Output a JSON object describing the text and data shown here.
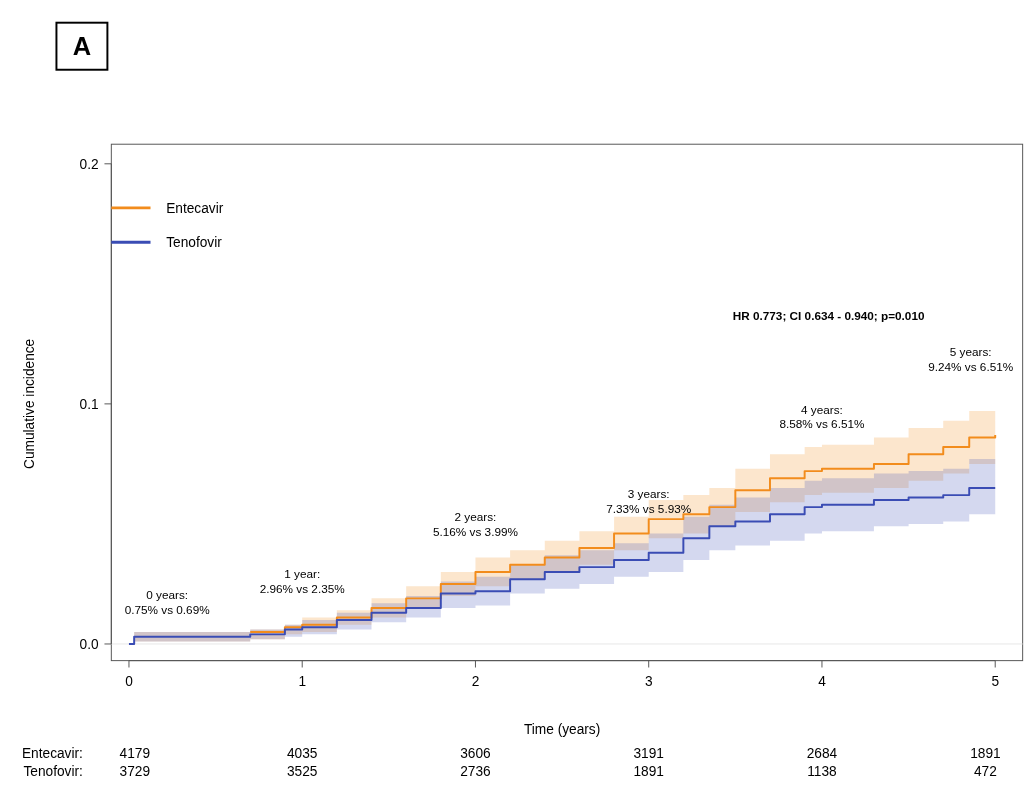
{
  "chart_data": {
    "type": "step",
    "title": "A",
    "xlabel": "Time (years)",
    "ylabel": "Cumulative incidence",
    "xlim": [
      0,
      5
    ],
    "ylim": [
      0,
      0.2
    ],
    "xticks": [
      0,
      1,
      2,
      3,
      4,
      5
    ],
    "yticks": [
      {
        "value": 0,
        "label": "0.0"
      },
      0.1,
      0.2
    ],
    "legend": "top left",
    "line_style": "solid",
    "series": [
      {
        "name": "Entecavir",
        "color": "#f28c1c",
        "x": [
          0,
          0.03,
          0.3,
          0.7,
          0.9,
          1.0,
          1.2,
          1.4,
          1.6,
          1.8,
          2.0,
          2.2,
          2.4,
          2.6,
          2.8,
          3.0,
          3.2,
          3.35,
          3.5,
          3.7,
          3.9,
          4.0,
          4.3,
          4.5,
          4.7,
          4.85,
          5.0
        ],
        "values": [
          null,
          null,
          null,
          0.005,
          0.007,
          0.008,
          0.011,
          0.015,
          0.019,
          0.025,
          0.03,
          0.033,
          0.036,
          0.04,
          0.046,
          0.052,
          0.054,
          0.057,
          0.064,
          0.069,
          0.072,
          0.073,
          0.075,
          0.079,
          0.082,
          0.086,
          0.087
        ],
        "lower": [
          0,
          0.001,
          0.001,
          0.002,
          0.004,
          0.005,
          0.008,
          0.011,
          0.015,
          0.02,
          0.024,
          0.027,
          0.03,
          0.033,
          0.039,
          0.044,
          0.046,
          0.049,
          0.055,
          0.059,
          0.062,
          0.063,
          0.065,
          0.068,
          0.071,
          0.075,
          0.077
        ],
        "upper": [
          0,
          0.005,
          0.005,
          0.006,
          0.008,
          0.011,
          0.014,
          0.019,
          0.024,
          0.03,
          0.036,
          0.039,
          0.043,
          0.047,
          0.053,
          0.06,
          0.062,
          0.065,
          0.073,
          0.079,
          0.082,
          0.083,
          0.086,
          0.09,
          0.093,
          0.097,
          0.098
        ]
      },
      {
        "name": "Tenofovir",
        "color": "#3a4cb4",
        "x": [
          0,
          0.03,
          0.3,
          0.7,
          0.9,
          1.0,
          1.2,
          1.4,
          1.6,
          1.8,
          2.0,
          2.2,
          2.4,
          2.6,
          2.8,
          3.0,
          3.2,
          3.35,
          3.5,
          3.7,
          3.9,
          4.0,
          4.3,
          4.5,
          4.7,
          4.85,
          5.0
        ],
        "values": [
          0,
          0.003,
          0.003,
          0.004,
          0.006,
          0.007,
          0.01,
          0.013,
          0.015,
          0.021,
          0.022,
          0.027,
          0.03,
          0.032,
          0.035,
          0.038,
          0.044,
          0.049,
          0.051,
          0.054,
          0.057,
          0.058,
          0.06,
          0.061,
          0.062,
          0.065,
          0.065
        ],
        "lower": [
          0,
          0.001,
          0.001,
          0.002,
          0.003,
          0.004,
          0.006,
          0.009,
          0.011,
          0.015,
          0.016,
          0.021,
          0.023,
          0.025,
          0.028,
          0.03,
          0.035,
          0.039,
          0.041,
          0.043,
          0.046,
          0.047,
          0.049,
          0.05,
          0.051,
          0.054,
          0.054
        ],
        "upper": [
          0,
          0.005,
          0.005,
          0.006,
          0.008,
          0.01,
          0.013,
          0.017,
          0.02,
          0.026,
          0.028,
          0.033,
          0.037,
          0.039,
          0.042,
          0.046,
          0.053,
          0.058,
          0.061,
          0.065,
          0.068,
          0.069,
          0.071,
          0.072,
          0.073,
          0.077,
          0.077
        ]
      }
    ],
    "annotations": [
      "HR 0.773; CI 0.634 - 0.940; p=0.010",
      "Entecavir: 4179 4035 3606 3191 2684 1891",
      "Tenofovir: 3729 3525 2736 1891 1138 472",
      "0 years:\n0.75% vs 0.69%",
      "1 year:\n2.96% vs 2.35%",
      "2 years:\n5.16% vs 3.99%",
      "3 years:\n7.33% vs 5.93%",
      "4 years:\n8.58% vs 6.51%",
      "5 years:\n9.24% vs 6.51%"
    ]
  }
}
